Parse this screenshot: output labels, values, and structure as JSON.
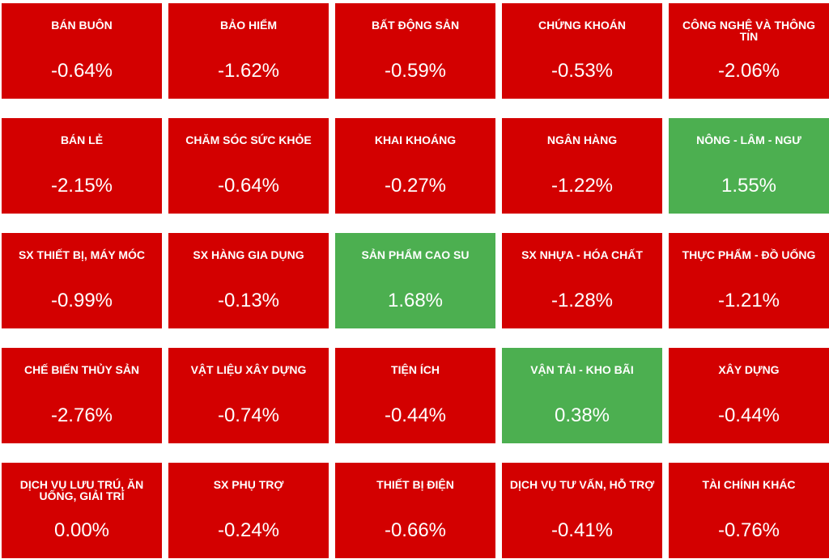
{
  "colors": {
    "negative": "#d30000",
    "positive": "#4caf50",
    "text": "#ffffff"
  },
  "sectors": [
    {
      "name": "BÁN BUÔN",
      "change": "-0.64%",
      "status": "down"
    },
    {
      "name": "BẢO HIỂM",
      "change": "-1.62%",
      "status": "down"
    },
    {
      "name": "BẤT ĐỘNG SẢN",
      "change": "-0.59%",
      "status": "down"
    },
    {
      "name": "CHỨNG KHOÁN",
      "change": "-0.53%",
      "status": "down"
    },
    {
      "name": "CÔNG NGHỆ VÀ THÔNG TIN",
      "change": "-2.06%",
      "status": "down"
    },
    {
      "name": "BÁN LẺ",
      "change": "-2.15%",
      "status": "down"
    },
    {
      "name": "CHĂM SÓC SỨC KHỎE",
      "change": "-0.64%",
      "status": "down"
    },
    {
      "name": "KHAI KHOÁNG",
      "change": "-0.27%",
      "status": "down"
    },
    {
      "name": "NGÂN HÀNG",
      "change": "-1.22%",
      "status": "down"
    },
    {
      "name": "NÔNG - LÂM - NGƯ",
      "change": "1.55%",
      "status": "up"
    },
    {
      "name": "SX THIẾT BỊ, MÁY MÓC",
      "change": "-0.99%",
      "status": "down"
    },
    {
      "name": "SX HÀNG GIA DỤNG",
      "change": "-0.13%",
      "status": "down"
    },
    {
      "name": "SẢN PHẨM CAO SU",
      "change": "1.68%",
      "status": "up"
    },
    {
      "name": "SX NHỰA - HÓA CHẤT",
      "change": "-1.28%",
      "status": "down"
    },
    {
      "name": "THỰC PHẨM - ĐỒ UỐNG",
      "change": "-1.21%",
      "status": "down"
    },
    {
      "name": "CHẾ BIẾN THỦY SẢN",
      "change": "-2.76%",
      "status": "down"
    },
    {
      "name": "VẬT LIỆU XÂY DỰNG",
      "change": "-0.74%",
      "status": "down"
    },
    {
      "name": "TIỆN ÍCH",
      "change": "-0.44%",
      "status": "down"
    },
    {
      "name": "VẬN TẢI - KHO BÃI",
      "change": "0.38%",
      "status": "up"
    },
    {
      "name": "XÂY DỰNG",
      "change": "-0.44%",
      "status": "down"
    },
    {
      "name": "DỊCH VỤ LƯU TRÚ, ĂN UỐNG, GIẢI TRÍ",
      "change": "0.00%",
      "status": "down"
    },
    {
      "name": "SX PHỤ TRỢ",
      "change": "-0.24%",
      "status": "down"
    },
    {
      "name": "THIẾT BỊ ĐIỆN",
      "change": "-0.66%",
      "status": "down"
    },
    {
      "name": "DỊCH VỤ TƯ VẤN, HỖ TRỢ",
      "change": "-0.41%",
      "status": "down"
    },
    {
      "name": "TÀI CHÍNH KHÁC",
      "change": "-0.76%",
      "status": "down"
    }
  ]
}
